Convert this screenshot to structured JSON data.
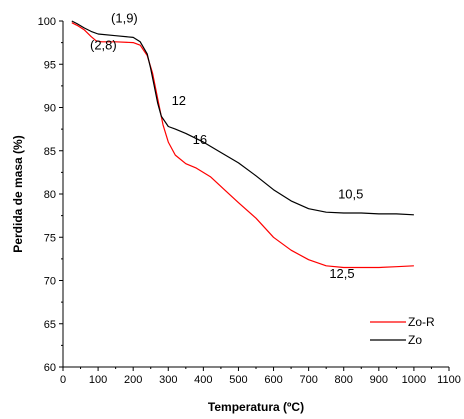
{
  "chart_data": {
    "type": "line",
    "title": "",
    "xlabel": "Temperatura (ºC)",
    "ylabel": "Perdida de masa (%)",
    "xlim": [
      0,
      1100
    ],
    "ylim": [
      60,
      100
    ],
    "xticks": [
      0,
      100,
      200,
      300,
      400,
      500,
      600,
      700,
      800,
      900,
      1000,
      1100
    ],
    "yticks": [
      60,
      65,
      70,
      75,
      80,
      85,
      90,
      95,
      100
    ],
    "xtick_labels": [
      "0",
      "100",
      "200",
      "300",
      "400",
      "500",
      "600",
      "700",
      "800",
      "900",
      "1000",
      "1100"
    ],
    "ytick_labels": [
      "60",
      "65",
      "70",
      "75",
      "80",
      "85",
      "90",
      "95",
      "100"
    ],
    "grid": false,
    "legend_position": "bottom-right",
    "series": [
      {
        "name": "Zo-R",
        "color": "#ff0000",
        "x": [
          25,
          40,
          60,
          80,
          95,
          110,
          150,
          200,
          220,
          240,
          255,
          270,
          285,
          300,
          320,
          350,
          380,
          420,
          460,
          500,
          550,
          600,
          650,
          700,
          750,
          800,
          850,
          900,
          950,
          1000
        ],
        "y": [
          99.8,
          99.5,
          99.0,
          98.2,
          97.7,
          97.6,
          97.6,
          97.5,
          97.2,
          96.0,
          94.0,
          91.0,
          88.0,
          86.0,
          84.5,
          83.5,
          83.0,
          82.0,
          80.5,
          79.0,
          77.2,
          75.0,
          73.5,
          72.4,
          71.7,
          71.5,
          71.5,
          71.5,
          71.6,
          71.7
        ]
      },
      {
        "name": "Zo",
        "color": "#000000",
        "x": [
          25,
          40,
          60,
          80,
          100,
          150,
          200,
          220,
          240,
          250,
          260,
          270,
          280,
          300,
          320,
          350,
          400,
          450,
          500,
          550,
          600,
          650,
          700,
          750,
          800,
          850,
          900,
          950,
          1000
        ],
        "y": [
          100.0,
          99.7,
          99.2,
          98.8,
          98.5,
          98.3,
          98.1,
          97.6,
          96.2,
          94.5,
          92.5,
          90.5,
          89.0,
          87.8,
          87.5,
          87.0,
          86.0,
          84.8,
          83.6,
          82.1,
          80.5,
          79.2,
          78.3,
          77.9,
          77.8,
          77.8,
          77.7,
          77.7,
          77.6
        ]
      }
    ],
    "annotations": [
      {
        "text": "(1,9)",
        "x": 175,
        "y": 99.8
      },
      {
        "text": "(2,8)",
        "x": 115,
        "y": 96.7
      },
      {
        "text": "12",
        "x": 330,
        "y": 90.3
      },
      {
        "text": "16",
        "x": 390,
        "y": 85.8
      },
      {
        "text": "10,5",
        "x": 820,
        "y": 79.5
      },
      {
        "text": "12,5",
        "x": 795,
        "y": 70.3
      }
    ],
    "legend": [
      {
        "name": "Zo-R",
        "color": "#ff0000"
      },
      {
        "name": "Zo",
        "color": "#000000"
      }
    ]
  }
}
